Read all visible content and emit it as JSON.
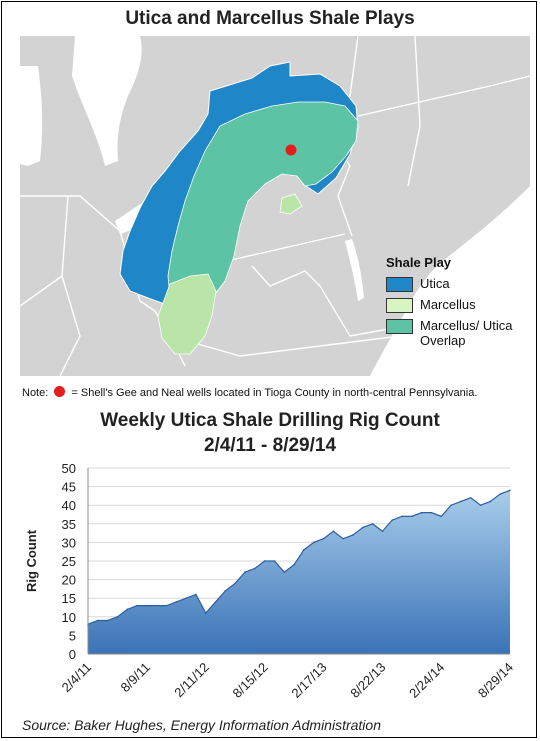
{
  "map": {
    "title": "Utica and Marcellus Shale Plays",
    "legend": {
      "title": "Shale Play",
      "items": [
        {
          "label": "Utica",
          "color": "#1f86c8"
        },
        {
          "label": "Marcellus",
          "color": "#d6f5c0"
        },
        {
          "label": "Marcellus/ Utica Overlap",
          "color": "#5cc4a4"
        }
      ]
    },
    "colors": {
      "land": "#d3d3d3",
      "water": "#ffffff",
      "borders": "#ffffff",
      "marker": "#e41d1d"
    },
    "note": {
      "prefix": "Note:",
      "text": "= Shell's Gee and Neal wells located in Tioga County in north-central Pennsylvania."
    }
  },
  "chart_data": {
    "type": "area",
    "title": "Weekly Utica Shale Drilling Rig Count",
    "subtitle": "2/4/11 - 8/29/14",
    "xlabel": "",
    "ylabel": "Rig Count",
    "ylim": [
      0,
      50
    ],
    "yticks": [
      0,
      5,
      10,
      15,
      20,
      25,
      30,
      35,
      40,
      45,
      50
    ],
    "x_tick_labels": [
      "2/4/11",
      "8/9/11",
      "2/11/12",
      "8/15/12",
      "2/17/13",
      "8/22/13",
      "2/24/14",
      "8/29/14"
    ],
    "grid": true,
    "colors": {
      "fill_top": "#a9cdea",
      "fill_bottom": "#3a73b7",
      "line": "#2d5f9e"
    },
    "x": [
      "2/4/11",
      "3/4/11",
      "4/8/11",
      "5/6/11",
      "6/3/11",
      "7/8/11",
      "8/9/11",
      "9/9/11",
      "10/7/11",
      "11/4/11",
      "12/2/11",
      "1/6/12",
      "2/11/12",
      "3/9/12",
      "4/6/12",
      "5/4/12",
      "6/8/12",
      "7/6/12",
      "8/15/12",
      "9/7/12",
      "10/5/12",
      "11/2/12",
      "12/7/12",
      "1/4/13",
      "2/17/13",
      "3/8/13",
      "4/5/13",
      "5/3/13",
      "6/7/13",
      "7/5/13",
      "8/22/13",
      "9/6/13",
      "10/4/13",
      "11/1/13",
      "12/6/13",
      "1/3/14",
      "2/24/14",
      "3/7/14",
      "4/4/14",
      "5/2/14",
      "6/6/14",
      "7/4/14",
      "8/1/14",
      "8/29/14"
    ],
    "series": [
      {
        "values": [
          8,
          9,
          9,
          10,
          12,
          13,
          13,
          13,
          13,
          14,
          15,
          16,
          11,
          14,
          17,
          19,
          22,
          23,
          25,
          25,
          22,
          24,
          28,
          30,
          31,
          33,
          31,
          32,
          34,
          35,
          33,
          36,
          37,
          37,
          38,
          38,
          37,
          40,
          41,
          42,
          40,
          41,
          43,
          44
        ]
      }
    ]
  },
  "source": "Source: Baker Hughes, Energy Information Administration"
}
